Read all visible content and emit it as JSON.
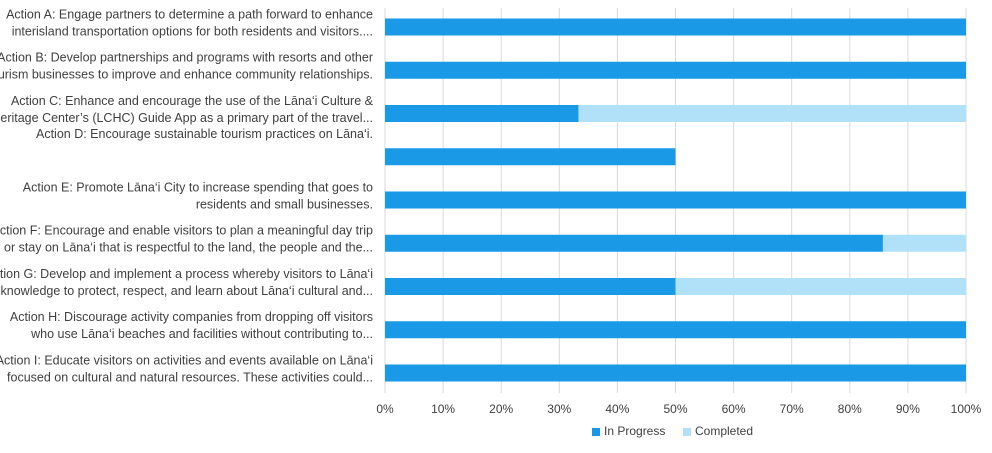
{
  "chart_data": {
    "type": "bar",
    "orientation": "horizontal",
    "stacked": true,
    "categories": [
      [
        "Action A: Engage partners to determine a path forward to enhance",
        "interisland transportation options for both residents and visitors...."
      ],
      [
        "Action B: Develop partnerships and programs with resorts and other",
        "tourism businesses to improve and enhance community relationships."
      ],
      [
        "Action C: Enhance and encourage the use of the Lāna‘i Culture &",
        "Heritage Center’s (LCHC) Guide App as a primary part of the travel..."
      ],
      [
        "Action D: Encourage sustainable tourism practices on Lāna‘i."
      ],
      [
        "Action E: Promote Lāna‘i City to increase spending that goes to",
        "residents and small businesses."
      ],
      [
        "Action F: Encourage and enable visitors to plan a meaningful day trip",
        "or stay on Lāna‘i that is respectful to the land, the people and the..."
      ],
      [
        "Action G: Develop and implement a process whereby visitors to Lāna‘i",
        "acknowledge to protect, respect, and learn about Lāna‘i cultural and..."
      ],
      [
        "Action H: Discourage activity companies from dropping off visitors",
        "who use Lāna‘i beaches and facilities without contributing to..."
      ],
      [
        "Action I:  Educate visitors on activities and events available on Lāna‘i",
        "focused on cultural and natural resources. These activities could..."
      ]
    ],
    "series": [
      {
        "name": "In Progress",
        "color": "#1a9ae6",
        "values": [
          100,
          100,
          33.3,
          50,
          100,
          85.7,
          50,
          100,
          100
        ]
      },
      {
        "name": "Completed",
        "color": "#b0e1f8",
        "values": [
          0,
          0,
          66.7,
          0,
          0,
          14.3,
          50,
          0,
          0
        ]
      }
    ],
    "xlim": [
      0,
      100
    ],
    "xticks": [
      "0%",
      "10%",
      "20%",
      "30%",
      "40%",
      "50%",
      "60%",
      "70%",
      "80%",
      "90%",
      "100%"
    ],
    "legend_position": "bottom",
    "grid": "vertical",
    "grid_color": "#d9d9d9",
    "text_color": "#404040"
  }
}
